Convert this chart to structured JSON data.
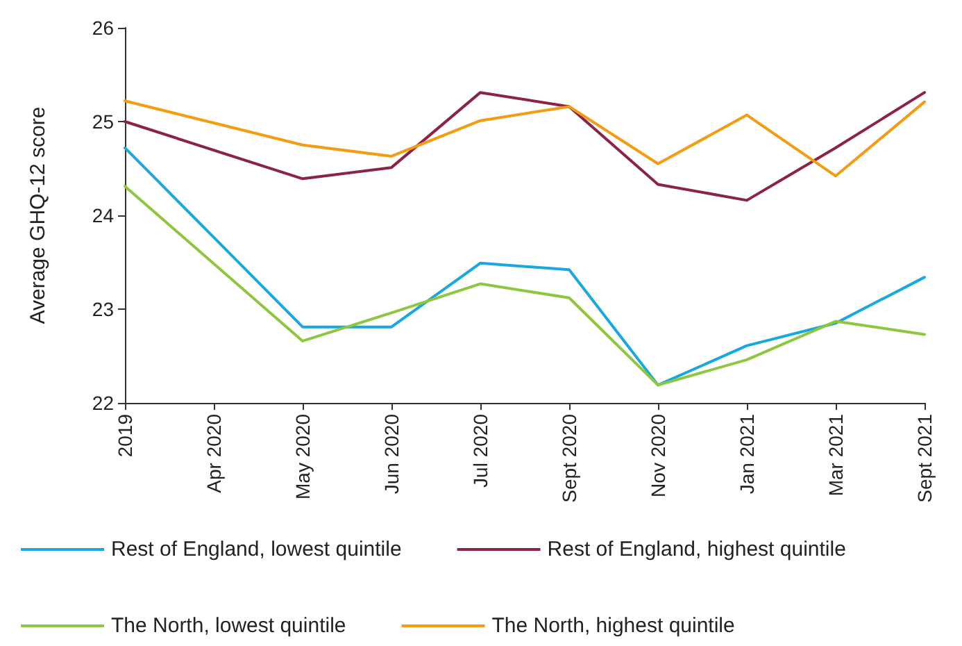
{
  "chart_data": {
    "type": "line",
    "ylabel": "Average GHQ-12 score",
    "categories": [
      "2019",
      "Apr 2020",
      "May 2020",
      "Jun 2020",
      "Jul 2020",
      "Sept 2020",
      "Nov 2020",
      "Jan 2021",
      "Mar 2021",
      "Sept 2021"
    ],
    "series": [
      {
        "name": "Rest of England, lowest quintile",
        "color": "#1aa7e0",
        "values": [
          24.72,
          null,
          22.81,
          22.81,
          23.49,
          23.42,
          22.19,
          22.61,
          22.85,
          23.34
        ]
      },
      {
        "name": "Rest of England, highest quintile",
        "color": "#8b2346",
        "values": [
          25.0,
          null,
          24.39,
          24.51,
          25.31,
          25.16,
          24.33,
          24.16,
          24.72,
          25.31
        ]
      },
      {
        "name": "The North, lowest quintile",
        "color": "#8dc63f",
        "values": [
          24.31,
          null,
          22.66,
          22.96,
          23.27,
          23.12,
          22.19,
          22.46,
          22.87,
          22.73
        ]
      },
      {
        "name": "The North, highest quintile",
        "color": "#f39c12",
        "values": [
          25.22,
          null,
          24.75,
          24.63,
          25.01,
          25.16,
          24.55,
          25.07,
          24.42,
          25.21
        ]
      }
    ],
    "ylim": [
      22,
      26
    ],
    "yticks": [
      22,
      23,
      24,
      25,
      26
    ],
    "grid": false,
    "legend": "bottom",
    "marker": "none",
    "line_style": "solid"
  }
}
